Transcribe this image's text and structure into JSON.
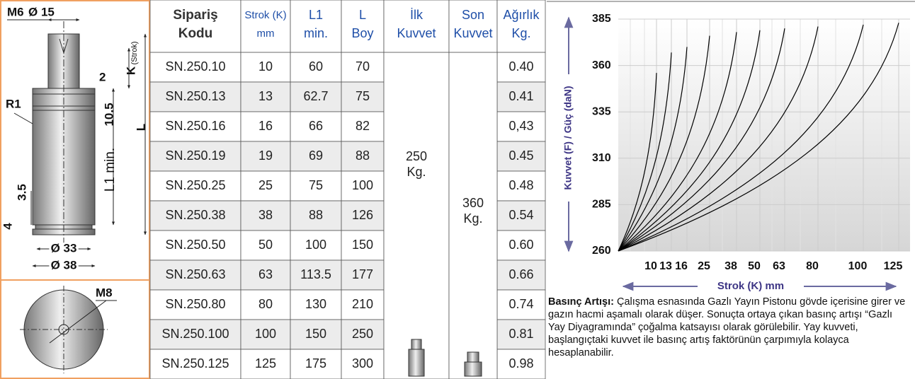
{
  "drawing": {
    "labels": {
      "d15": "Ø 15",
      "m6": "M6",
      "k": "K",
      "strok": "(Strok)",
      "two": "2",
      "r1": "R1",
      "ten": "10.5",
      "l": "L",
      "l1": "L1 min.",
      "three": "3.5",
      "four": "4",
      "d33": "Ø 33",
      "d38": "Ø 38",
      "m8": "M8"
    }
  },
  "table": {
    "header": [
      [
        "Sipariş",
        "Kodu"
      ],
      [
        "Strok (K)",
        "mm"
      ],
      [
        "L1",
        "min."
      ],
      [
        "L",
        "Boy"
      ],
      [
        "İlk",
        "Kuvvet"
      ],
      [
        "Son",
        "Kuvvet"
      ],
      [
        "Ağırlık",
        "Kg."
      ]
    ],
    "rows": [
      [
        "SN.250.10",
        "10",
        "60",
        "70",
        "0.40"
      ],
      [
        "SN.250.13",
        "13",
        "62.7",
        "75",
        "0.41"
      ],
      [
        "SN.250.16",
        "16",
        "66",
        "82",
        "0,43"
      ],
      [
        "SN.250.19",
        "19",
        "69",
        "88",
        "0.45"
      ],
      [
        "SN.250.25",
        "25",
        "75",
        "100",
        "0.48"
      ],
      [
        "SN.250.38",
        "38",
        "88",
        "126",
        "0.54"
      ],
      [
        "SN.250.50",
        "50",
        "100",
        "150",
        "0.60"
      ],
      [
        "SN.250.63",
        "63",
        "113.5",
        "177",
        "0.66"
      ],
      [
        "SN.250.80",
        "80",
        "130",
        "210",
        "0.74"
      ],
      [
        "SN.250.100",
        "100",
        "150",
        "250",
        "0.81"
      ],
      [
        "SN.250.125",
        "125",
        "175",
        "300",
        "0.98"
      ]
    ],
    "initial_force": [
      "250",
      "Kg."
    ],
    "final_force": [
      "360",
      "Kg."
    ]
  },
  "chart_data": {
    "type": "line",
    "ylabel": "Kuvvet (F) / Güç (daN)",
    "xlabel": "Strok (K) mm",
    "categories": [
      "10",
      "13",
      "16",
      "25",
      "38",
      "50",
      "63",
      "80",
      "100",
      "125"
    ],
    "values": [
      356,
      367,
      370,
      376,
      378,
      379,
      380,
      381,
      382,
      383
    ],
    "color": "#000000",
    "ylim": [
      260,
      385
    ],
    "yticks": [
      260,
      285,
      310,
      335,
      360,
      385
    ],
    "grid": true
  },
  "description": {
    "title": "Basınç Artışı:",
    "text": "Çalışma esnasında Gazlı Yayın Pistonu gövde içerisine girer ve gazın hacmi aşamalı olarak düşer. Sonuçta ortaya çıkan basınç artışı “Gazlı Yay Diyagramında” çoğalma katsayısı olarak görülebilir. Yay kuvveti, başlangıçtaki kuvvet ile basınç artış faktörünün çarpımıyla kolayca hesaplanabilir."
  }
}
